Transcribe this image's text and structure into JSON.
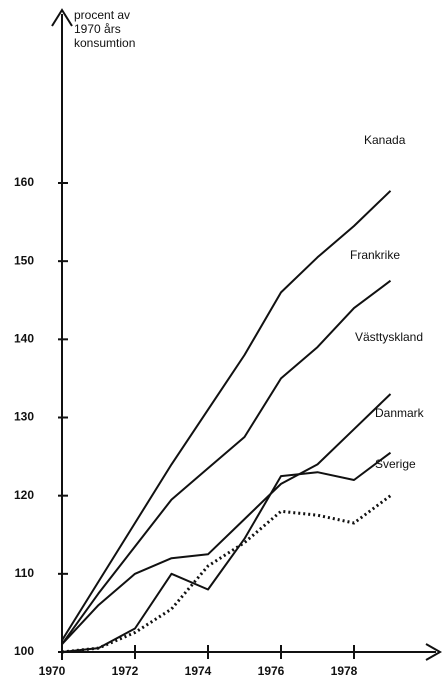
{
  "chart_data": {
    "type": "line",
    "ylabel": [
      "procent av",
      "1970 års",
      "konsumtion"
    ],
    "x": [
      1970,
      1971,
      1972,
      1973,
      1974,
      1975,
      1976,
      1977,
      1978,
      1979
    ],
    "xlim": [
      1970,
      1980
    ],
    "xticks": [
      1970,
      1972,
      1974,
      1976,
      1978
    ],
    "ylim": [
      100,
      160
    ],
    "yticks": [
      100,
      110,
      120,
      130,
      140,
      150,
      160
    ],
    "series": [
      {
        "name": "Kanada",
        "color": "#111111",
        "linestyle": "solid",
        "values": [
          101.5,
          109,
          116.5,
          124,
          131,
          138,
          146,
          150.5,
          154.5,
          159
        ]
      },
      {
        "name": "Frankrike",
        "color": "#111111",
        "linestyle": "solid",
        "values": [
          101,
          107.5,
          113.5,
          119.5,
          123.5,
          127.5,
          135,
          139,
          144,
          147.5
        ]
      },
      {
        "name": "Västtyskland",
        "color": "#111111",
        "linestyle": "solid",
        "values": [
          101,
          106,
          110,
          112,
          112.5,
          117,
          121.5,
          124,
          128.5,
          133
        ]
      },
      {
        "name": "Danmark",
        "color": "#111111",
        "linestyle": "solid",
        "values": [
          100,
          100.5,
          103,
          110,
          108,
          114.5,
          122.5,
          123,
          122,
          125.5
        ]
      },
      {
        "name": "Sverige",
        "color": "#111111",
        "linestyle": "dotted",
        "values": [
          100,
          100.5,
          102.5,
          105.5,
          111,
          114,
          118,
          117.5,
          116.5,
          120
        ]
      }
    ]
  }
}
